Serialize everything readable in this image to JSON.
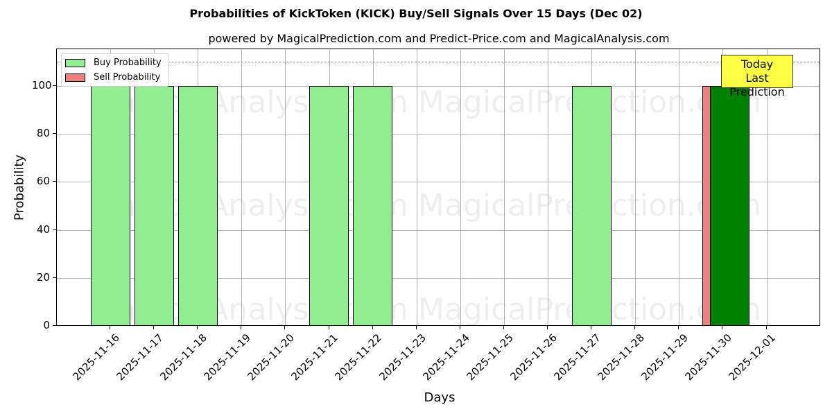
{
  "title": "Probabilities of KickToken (KICK) Buy/Sell Signals Over 15 Days (Dec 02)",
  "subtitle": "powered by MagicalPrediction.com and Predict-Price.com and MagicalAnalysis.com",
  "watermarks": [
    "MagicalAnalysis.com",
    "MagicalPrediction.com"
  ],
  "legend": {
    "buy_label": "Buy Probability",
    "sell_label": "Sell Probability"
  },
  "annotation": {
    "line1": "Today",
    "line2": "Last Prediction"
  },
  "colors": {
    "buy": "#90ee90",
    "sell": "#f08080",
    "today_buy": "#008000",
    "annotation_bg": "#ffff44"
  },
  "chart_data": {
    "type": "bar",
    "title": "Probabilities of KickToken (KICK) Buy/Sell Signals Over 15 Days (Dec 02)",
    "subtitle": "powered by MagicalPrediction.com and Predict-Price.com and MagicalAnalysis.com",
    "xlabel": "Days",
    "ylabel": "Probability",
    "ylim": [
      0,
      115
    ],
    "yticks": [
      0,
      20,
      40,
      60,
      80,
      100
    ],
    "threshold_line": 110,
    "grid": true,
    "legend_position": "upper left",
    "categories": [
      "2025-11-16",
      "2025-11-17",
      "2025-11-18",
      "2025-11-19",
      "2025-11-20",
      "2025-11-21",
      "2025-11-22",
      "2025-11-23",
      "2025-11-24",
      "2025-11-25",
      "2025-11-26",
      "2025-11-27",
      "2025-11-28",
      "2025-11-29",
      "2025-11-30",
      "2025-12-01"
    ],
    "series": [
      {
        "name": "Buy Probability",
        "values": [
          100,
          100,
          100,
          0,
          0,
          100,
          100,
          0,
          0,
          0,
          0,
          100,
          0,
          0,
          0,
          100
        ]
      },
      {
        "name": "Sell Probability",
        "values": [
          0,
          0,
          0,
          0,
          0,
          0,
          0,
          0,
          0,
          0,
          0,
          0,
          0,
          0,
          100,
          0
        ]
      }
    ],
    "bars": [
      {
        "date": "2025-11-16",
        "type": "buy",
        "value": 100
      },
      {
        "date": "2025-11-17",
        "type": "buy",
        "value": 100
      },
      {
        "date": "2025-11-18",
        "type": "buy",
        "value": 100
      },
      {
        "date": "2025-11-21",
        "type": "buy",
        "value": 100
      },
      {
        "date": "2025-11-22",
        "type": "buy",
        "value": 100
      },
      {
        "date": "2025-11-27",
        "type": "buy",
        "value": 100
      },
      {
        "date": "2025-11-30",
        "type": "sell",
        "value": 100
      },
      {
        "date": "2025-12-01",
        "type": "buy",
        "value": 100,
        "highlight": "today"
      }
    ],
    "annotations": [
      "Today\nLast Prediction"
    ]
  }
}
